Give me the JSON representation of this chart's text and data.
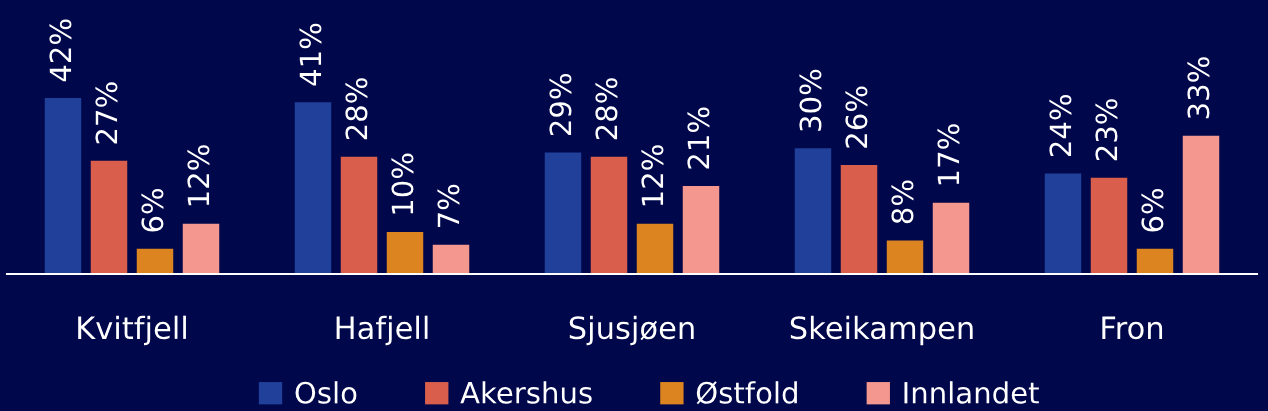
{
  "chart_data": {
    "type": "bar",
    "categories": [
      "Kvitfjell",
      "Hafjell",
      "Sjusjøen",
      "Skeikampen",
      "Fron"
    ],
    "series": [
      {
        "name": "Oslo",
        "color": "#21409a",
        "values": [
          42,
          41,
          29,
          30,
          24
        ],
        "value_labels": [
          "42%",
          "41%",
          "29%",
          "30%",
          "24%"
        ]
      },
      {
        "name": "Akershus",
        "color": "#d95f4c",
        "values": [
          27,
          28,
          28,
          26,
          23
        ],
        "value_labels": [
          "27%",
          "28%",
          "28%",
          "26%",
          "23%"
        ]
      },
      {
        "name": "Østfold",
        "color": "#dc8420",
        "values": [
          6,
          10,
          12,
          8,
          6
        ],
        "value_labels": [
          "6%",
          "10%",
          "12%",
          "8%",
          "6%"
        ]
      },
      {
        "name": "Innlandet",
        "color": "#f4978e",
        "values": [
          12,
          7,
          21,
          17,
          33
        ],
        "value_labels": [
          "12%",
          "7%",
          "21%",
          "17%",
          "33%"
        ]
      }
    ],
    "legend": "bottom",
    "tick_labels": "x"
  }
}
